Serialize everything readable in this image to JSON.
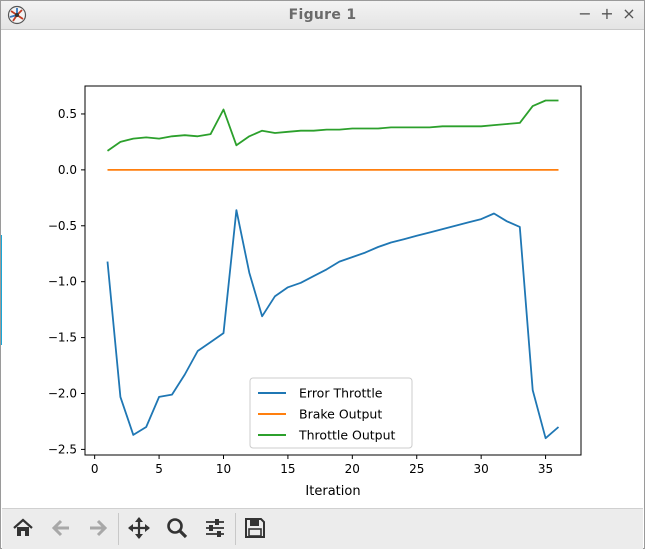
{
  "window": {
    "title": "Figure 1",
    "minimize": "−",
    "maximize": "+",
    "close": "×"
  },
  "toolbar": {
    "buttons": [
      {
        "name": "home-button",
        "icon": "home-icon"
      },
      {
        "name": "back-button",
        "icon": "arrow-left-icon"
      },
      {
        "name": "forward-button",
        "icon": "arrow-right-icon"
      },
      {
        "name": "pan-button",
        "icon": "move-icon"
      },
      {
        "name": "zoom-button",
        "icon": "magnifier-icon"
      },
      {
        "name": "configure-subplots-button",
        "icon": "sliders-icon"
      },
      {
        "name": "save-button",
        "icon": "floppy-icon"
      }
    ]
  },
  "chart_data": {
    "type": "line",
    "title": "",
    "xlabel": "Iteration",
    "ylabel": "",
    "xlim": [
      -0.75,
      37.75
    ],
    "ylim": [
      -2.55,
      0.75
    ],
    "xticks": [
      0,
      5,
      10,
      15,
      20,
      25,
      30,
      35
    ],
    "yticks": [
      0.5,
      0.0,
      -0.5,
      -1.0,
      -1.5,
      -2.0,
      -2.5
    ],
    "ytick_labels": [
      "0.5",
      "0.0",
      "−0.5",
      "−1.0",
      "−1.5",
      "−2.0",
      "−2.5"
    ],
    "grid": false,
    "legend_position": "lower-center",
    "x": [
      1,
      2,
      3,
      4,
      5,
      6,
      7,
      8,
      9,
      10,
      11,
      12,
      13,
      14,
      15,
      16,
      17,
      18,
      19,
      20,
      21,
      22,
      23,
      24,
      25,
      26,
      27,
      28,
      29,
      30,
      31,
      32,
      33,
      34,
      35,
      36
    ],
    "series": [
      {
        "name": "Error Throttle",
        "color": "#1f77b4",
        "values": [
          -0.82,
          -2.03,
          -2.37,
          -2.3,
          -2.03,
          -2.01,
          -1.83,
          -1.62,
          -1.54,
          -1.46,
          -0.36,
          -0.92,
          -1.31,
          -1.13,
          -1.05,
          -1.01,
          -0.95,
          -0.89,
          -0.82,
          -0.78,
          -0.74,
          -0.69,
          -0.65,
          -0.62,
          -0.59,
          -0.56,
          -0.53,
          -0.5,
          -0.47,
          -0.44,
          -0.39,
          -0.46,
          -0.51,
          -1.97,
          -2.4,
          -2.3
        ]
      },
      {
        "name": "Brake Output",
        "color": "#ff7f0e",
        "values": [
          0,
          0,
          0,
          0,
          0,
          0,
          0,
          0,
          0,
          0,
          0,
          0,
          0,
          0,
          0,
          0,
          0,
          0,
          0,
          0,
          0,
          0,
          0,
          0,
          0,
          0,
          0,
          0,
          0,
          0,
          0,
          0,
          0,
          0,
          0,
          0
        ]
      },
      {
        "name": "Throttle Output",
        "color": "#2ca02c",
        "values": [
          0.17,
          0.25,
          0.28,
          0.29,
          0.28,
          0.3,
          0.31,
          0.3,
          0.32,
          0.54,
          0.22,
          0.3,
          0.35,
          0.33,
          0.34,
          0.35,
          0.35,
          0.36,
          0.36,
          0.37,
          0.37,
          0.37,
          0.38,
          0.38,
          0.38,
          0.38,
          0.39,
          0.39,
          0.39,
          0.39,
          0.4,
          0.41,
          0.42,
          0.57,
          0.62,
          0.62
        ]
      }
    ]
  }
}
